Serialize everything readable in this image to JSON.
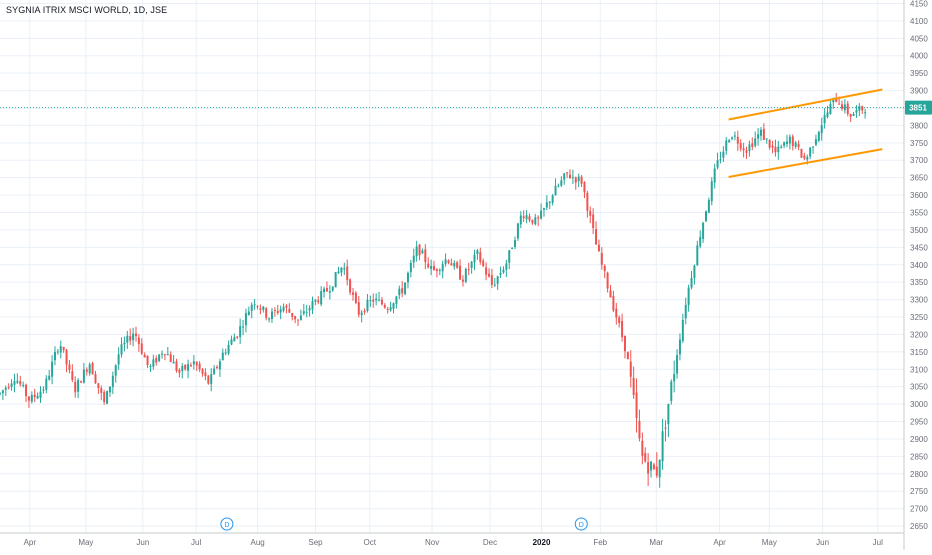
{
  "header": {
    "title": "SYGNIA ITRIX MSCI WORLD, 1D, JSE"
  },
  "colors": {
    "up": "#26a69a",
    "down": "#ef5350",
    "channel": "#ff9800",
    "grid": "#e9f0f7",
    "axis_text": "#6a6d78",
    "last_price": "#26a69a",
    "event_marker": "#2196f3"
  },
  "chart_data": {
    "type": "candlestick",
    "title": "SYGNIA ITRIX MSCI WORLD, 1D, JSE",
    "ylim": [
      2630,
      4160
    ],
    "y_ticks": [
      2650,
      2700,
      2750,
      2800,
      2850,
      2900,
      2950,
      3000,
      3050,
      3100,
      3150,
      3200,
      3250,
      3300,
      3350,
      3400,
      3450,
      3500,
      3550,
      3600,
      3650,
      3700,
      3750,
      3800,
      3850,
      3900,
      3950,
      4000,
      4050,
      4100,
      4150
    ],
    "x_ticks": [
      "Apr",
      "May",
      "Jun",
      "Jul",
      "Aug",
      "Sep",
      "Oct",
      "Nov",
      "Dec",
      "2020",
      "Feb",
      "Mar",
      "Apr",
      "May",
      "Jun",
      "Jul"
    ],
    "x_tick_positions": [
      0.033,
      0.095,
      0.158,
      0.217,
      0.285,
      0.349,
      0.409,
      0.478,
      0.542,
      0.599,
      0.664,
      0.726,
      0.796,
      0.851,
      0.91,
      0.971
    ],
    "events": [
      {
        "label": "D",
        "position": 0.251
      },
      {
        "label": "D",
        "position": 0.643
      }
    ],
    "last_price": 3851,
    "last_price_label": "3851",
    "trend_points": [
      3030,
      3080,
      3010,
      3050,
      3180,
      3040,
      3120,
      3000,
      3150,
      3210,
      3100,
      3160,
      3090,
      3120,
      3060,
      3150,
      3210,
      3300,
      3250,
      3280,
      3240,
      3290,
      3330,
      3400,
      3260,
      3300,
      3280,
      3330,
      3450,
      3380,
      3420,
      3360,
      3430,
      3340,
      3410,
      3550,
      3520,
      3600,
      3660,
      3640,
      3450,
      3300,
      3150,
      2850,
      2800,
      3050,
      3300,
      3500,
      3680,
      3780,
      3730,
      3780,
      3720,
      3760,
      3700,
      3800,
      3880,
      3830,
      3851
    ],
    "channel_lines": [
      {
        "name": "upper",
        "from": {
          "position": 0.806,
          "value": 3817
        },
        "to": {
          "position": 0.976,
          "value": 3903
        }
      },
      {
        "name": "lower",
        "from": {
          "position": 0.806,
          "value": 3652
        },
        "to": {
          "position": 0.976,
          "value": 3732
        }
      }
    ],
    "grid": true
  }
}
